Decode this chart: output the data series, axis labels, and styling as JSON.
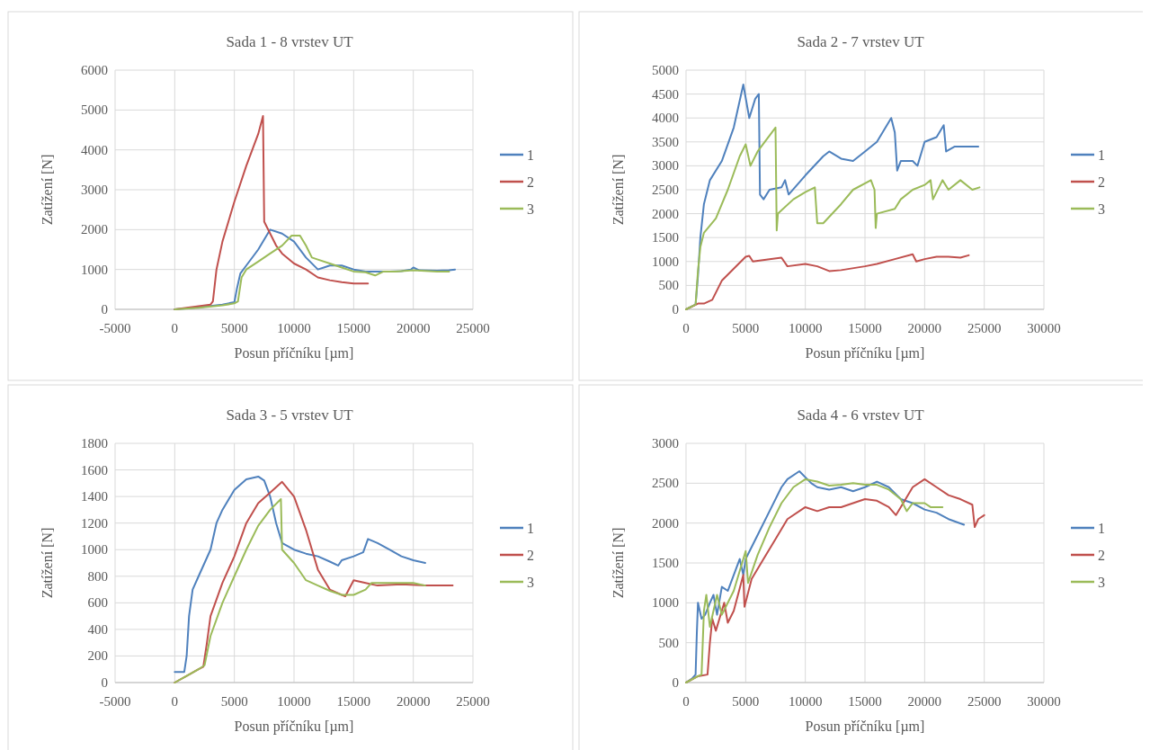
{
  "chart_data": [
    {
      "type": "line",
      "title": "Sada 1 - 8 vrstev UT",
      "xlabel": "Posun příčníku [µm]",
      "ylabel": "Zatížení [N]",
      "xlim": [
        -5000,
        25000
      ],
      "xticks": [
        -5000,
        0,
        5000,
        10000,
        15000,
        20000,
        25000
      ],
      "ylim": [
        0,
        6000
      ],
      "yticks": [
        0,
        1000,
        2000,
        3000,
        4000,
        5000,
        6000
      ],
      "grid": true,
      "legend": "right",
      "series": [
        {
          "name": "1",
          "color": "#4f81bd",
          "x": [
            0,
            2000,
            4000,
            5000,
            5200,
            5500,
            6000,
            7000,
            8000,
            9000,
            10000,
            11000,
            12000,
            12500,
            13000,
            14000,
            15000,
            16000,
            17000,
            18000,
            19000,
            19800,
            20000,
            20500,
            22000,
            23000,
            23500
          ],
          "values": [
            0,
            50,
            120,
            180,
            500,
            900,
            1100,
            1500,
            2000,
            1900,
            1700,
            1300,
            1000,
            1050,
            1100,
            1100,
            1000,
            950,
            950,
            950,
            960,
            1000,
            1050,
            980,
            970,
            980,
            1000
          ]
        },
        {
          "name": "2",
          "color": "#c0504d",
          "x": [
            0,
            1000,
            2000,
            3000,
            3200,
            3500,
            4000,
            5000,
            6000,
            7000,
            7400,
            7500,
            8000,
            8500,
            9000,
            10000,
            11000,
            12000,
            13000,
            14000,
            15000,
            16200
          ],
          "values": [
            0,
            40,
            80,
            120,
            200,
            1000,
            1700,
            2700,
            3600,
            4400,
            4850,
            2200,
            1900,
            1600,
            1400,
            1150,
            1000,
            800,
            730,
            680,
            650,
            650
          ]
        },
        {
          "name": "3",
          "color": "#9bbb59",
          "x": [
            0,
            2000,
            4000,
            5000,
            5300,
            5600,
            6000,
            7000,
            8000,
            9000,
            9800,
            10500,
            11000,
            11500,
            12000,
            13000,
            14000,
            15000,
            16000,
            16800,
            17500,
            18500,
            20000,
            22000,
            23000
          ],
          "values": [
            0,
            40,
            100,
            150,
            200,
            800,
            1000,
            1200,
            1400,
            1600,
            1850,
            1850,
            1600,
            1300,
            1250,
            1150,
            1050,
            950,
            930,
            850,
            950,
            950,
            980,
            950,
            950
          ]
        }
      ]
    },
    {
      "type": "line",
      "title": "Sada 2 - 7 vrstev UT",
      "xlabel": "Posun příčníku [µm]",
      "ylabel": "Zatížení [N]",
      "xlim": [
        0,
        30000
      ],
      "xticks": [
        0,
        5000,
        10000,
        15000,
        20000,
        25000,
        30000
      ],
      "ylim": [
        0,
        5000
      ],
      "yticks": [
        0,
        500,
        1000,
        1500,
        2000,
        2500,
        3000,
        3500,
        4000,
        4500,
        5000
      ],
      "grid": true,
      "legend": "right",
      "series": [
        {
          "name": "1",
          "color": "#4f81bd",
          "x": [
            0,
            800,
            1000,
            1200,
            1500,
            2000,
            3000,
            4000,
            4800,
            5300,
            5800,
            6100,
            6200,
            6500,
            7000,
            8000,
            8300,
            8600,
            10000,
            11500,
            12000,
            13000,
            14000,
            15000,
            16000,
            17200,
            17500,
            17700,
            18000,
            19000,
            19400,
            20000,
            21000,
            21600,
            21800,
            22500,
            24500
          ],
          "values": [
            0,
            100,
            700,
            1500,
            2200,
            2700,
            3100,
            3800,
            4700,
            4000,
            4400,
            4500,
            2400,
            2300,
            2500,
            2550,
            2700,
            2400,
            2800,
            3200,
            3300,
            3150,
            3100,
            3300,
            3500,
            4000,
            3700,
            2900,
            3100,
            3100,
            3000,
            3500,
            3600,
            3850,
            3300,
            3400,
            3400
          ]
        },
        {
          "name": "2",
          "color": "#c0504d",
          "x": [
            0,
            1000,
            1500,
            2200,
            3000,
            4000,
            5000,
            5300,
            5600,
            7000,
            8000,
            8500,
            10000,
            11000,
            12000,
            13000,
            15000,
            16000,
            17500,
            19000,
            19300,
            20000,
            21000,
            22000,
            23000,
            23700
          ],
          "values": [
            0,
            120,
            120,
            200,
            600,
            850,
            1100,
            1120,
            1000,
            1050,
            1080,
            900,
            950,
            900,
            800,
            820,
            900,
            950,
            1050,
            1150,
            1000,
            1050,
            1100,
            1100,
            1080,
            1130
          ]
        },
        {
          "name": "3",
          "color": "#9bbb59",
          "x": [
            0,
            800,
            1000,
            1200,
            1500,
            2500,
            3500,
            4500,
            5000,
            5400,
            6000,
            7500,
            7600,
            7700,
            9000,
            10000,
            10800,
            11000,
            11500,
            13000,
            14000,
            15500,
            15800,
            15900,
            16000,
            17500,
            18000,
            19000,
            20000,
            20500,
            20700,
            21500,
            22000,
            23000,
            24000,
            24600
          ],
          "values": [
            0,
            100,
            800,
            1300,
            1600,
            1900,
            2500,
            3200,
            3450,
            3000,
            3300,
            3800,
            1650,
            2000,
            2300,
            2450,
            2550,
            1800,
            1800,
            2200,
            2500,
            2700,
            2500,
            1700,
            2000,
            2100,
            2300,
            2500,
            2600,
            2700,
            2300,
            2700,
            2500,
            2700,
            2500,
            2550
          ]
        }
      ]
    },
    {
      "type": "line",
      "title": "Sada 3 - 5 vrstev UT",
      "xlabel": "Posun příčníku [µm]",
      "ylabel": "Zatížení [N]",
      "xlim": [
        -5000,
        25000
      ],
      "xticks": [
        -5000,
        0,
        5000,
        10000,
        15000,
        20000,
        25000
      ],
      "ylim": [
        0,
        1800
      ],
      "yticks": [
        0,
        200,
        400,
        600,
        800,
        1000,
        1200,
        1400,
        1600,
        1800
      ],
      "grid": true,
      "legend": "right",
      "series": [
        {
          "name": "1",
          "color": "#4f81bd",
          "x": [
            0,
            800,
            1000,
            1200,
            1500,
            2000,
            2500,
            3000,
            3500,
            4000,
            5000,
            6000,
            7000,
            7500,
            8000,
            8500,
            9000,
            10000,
            11000,
            12000,
            13000,
            13700,
            14000,
            15000,
            15800,
            16200,
            17000,
            18000,
            19000,
            20000,
            21000
          ],
          "values": [
            80,
            80,
            200,
            500,
            700,
            800,
            900,
            1000,
            1200,
            1300,
            1450,
            1530,
            1550,
            1520,
            1400,
            1200,
            1050,
            1000,
            970,
            950,
            910,
            880,
            920,
            950,
            980,
            1080,
            1050,
            1000,
            950,
            920,
            900
          ]
        },
        {
          "name": "2",
          "color": "#c0504d",
          "x": [
            0,
            1000,
            2000,
            2400,
            2700,
            3000,
            4000,
            5000,
            6000,
            7000,
            8000,
            9000,
            10000,
            11000,
            12000,
            13000,
            14000,
            14300,
            15000,
            16000,
            17000,
            19000,
            21000,
            23300
          ],
          "values": [
            0,
            50,
            100,
            120,
            300,
            500,
            750,
            950,
            1200,
            1350,
            1430,
            1510,
            1400,
            1150,
            850,
            700,
            660,
            650,
            770,
            750,
            730,
            740,
            730,
            730
          ]
        },
        {
          "name": "3",
          "color": "#9bbb59",
          "x": [
            0,
            1000,
            2000,
            2500,
            3000,
            4000,
            5000,
            6000,
            7000,
            8000,
            8900,
            9000,
            10000,
            11000,
            12000,
            13000,
            14000,
            15000,
            16000,
            16500,
            18000,
            20000,
            21000
          ],
          "values": [
            0,
            50,
            100,
            130,
            350,
            600,
            800,
            1000,
            1180,
            1300,
            1380,
            1000,
            900,
            770,
            730,
            690,
            660,
            660,
            700,
            750,
            750,
            750,
            730
          ]
        }
      ]
    },
    {
      "type": "line",
      "title": "Sada 4 - 6 vrstev UT",
      "xlabel": "Posun příčníku [µm]",
      "ylabel": "Zatížení [N]",
      "xlim": [
        0,
        30000
      ],
      "xticks": [
        0,
        5000,
        10000,
        15000,
        20000,
        25000,
        30000
      ],
      "ylim": [
        0,
        3000
      ],
      "yticks": [
        0,
        500,
        1000,
        1500,
        2000,
        2500,
        3000
      ],
      "grid": true,
      "legend": "right",
      "series": [
        {
          "name": "1",
          "color": "#4f81bd",
          "x": [
            0,
            500,
            800,
            900,
            1000,
            1300,
            1600,
            2000,
            2300,
            2600,
            3000,
            3500,
            4500,
            4800,
            5000,
            6000,
            7000,
            8000,
            8500,
            9500,
            10500,
            11000,
            12000,
            13000,
            14000,
            15000,
            16000,
            17000,
            18000,
            19000,
            20000,
            21000,
            22000,
            23300
          ],
          "values": [
            0,
            50,
            100,
            600,
            1000,
            800,
            850,
            1000,
            1100,
            850,
            1200,
            1150,
            1550,
            1350,
            1550,
            1850,
            2150,
            2450,
            2550,
            2650,
            2500,
            2450,
            2420,
            2450,
            2400,
            2450,
            2520,
            2450,
            2300,
            2250,
            2170,
            2130,
            2050,
            1980
          ]
        },
        {
          "name": "2",
          "color": "#c0504d",
          "x": [
            0,
            1000,
            1800,
            2000,
            2200,
            2500,
            3200,
            3500,
            4000,
            4800,
            4900,
            5500,
            6500,
            7500,
            8500,
            10000,
            11000,
            12000,
            13000,
            15000,
            16000,
            17000,
            17600,
            18000,
            19000,
            20000,
            21000,
            22000,
            23000,
            24000,
            24200,
            24500,
            25000
          ],
          "values": [
            0,
            80,
            100,
            500,
            800,
            650,
            1000,
            750,
            900,
            1350,
            950,
            1300,
            1550,
            1800,
            2050,
            2200,
            2150,
            2200,
            2200,
            2300,
            2280,
            2200,
            2100,
            2200,
            2450,
            2550,
            2450,
            2350,
            2300,
            2230,
            1950,
            2050,
            2100
          ]
        },
        {
          "name": "3",
          "color": "#9bbb59",
          "x": [
            0,
            1000,
            1300,
            1500,
            1700,
            2000,
            2600,
            3000,
            4000,
            5000,
            5200,
            6000,
            7000,
            8000,
            9000,
            10000,
            11000,
            12000,
            13000,
            14000,
            15000,
            16000,
            17000,
            18000,
            18500,
            19000,
            20000,
            20500,
            21500
          ],
          "values": [
            0,
            80,
            100,
            900,
            1100,
            700,
            1100,
            850,
            1150,
            1650,
            1250,
            1600,
            1950,
            2250,
            2450,
            2550,
            2520,
            2470,
            2480,
            2500,
            2480,
            2480,
            2420,
            2300,
            2150,
            2250,
            2250,
            2200,
            2200
          ]
        }
      ]
    }
  ]
}
